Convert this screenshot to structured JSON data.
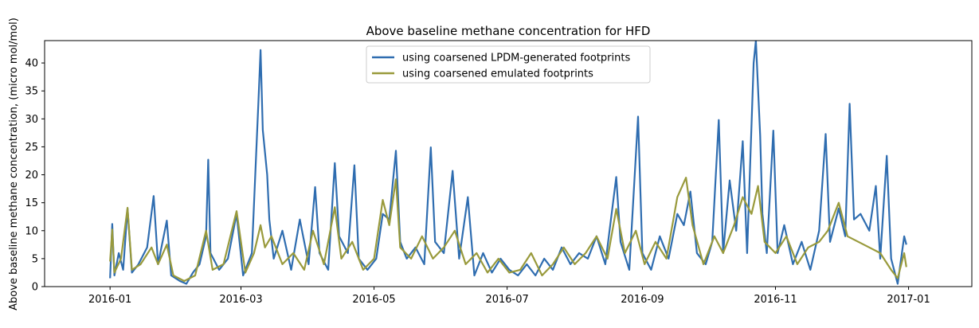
{
  "chart_data": {
    "type": "line",
    "title": "Above baseline methane concentration for HFD",
    "xlabel": "",
    "ylabel": "Above baseline methane concentration, (micro mol/mol)",
    "x_range": [
      "2015-12-02",
      "2017-01-30"
    ],
    "ylim": [
      0,
      44
    ],
    "x_ticks": [
      "2016-01-01",
      "2016-03-01",
      "2016-05-01",
      "2016-07-01",
      "2016-09-01",
      "2016-11-01",
      "2017-01-01"
    ],
    "x_tick_labels": [
      "2016-01",
      "2016-03",
      "2016-05",
      "2016-07",
      "2016-09",
      "2016-11",
      "2017-01"
    ],
    "y_ticks": [
      0,
      5,
      10,
      15,
      20,
      25,
      30,
      35,
      40
    ],
    "y_tick_labels": [
      "0",
      "5",
      "10",
      "15",
      "20",
      "25",
      "30",
      "35",
      "40"
    ],
    "grid": false,
    "legend_position": "top-center",
    "series": [
      {
        "name": "using coarsened LPDM-generated footprints",
        "color": "#2f6db0",
        "points": [
          [
            "2016-01-01",
            1.5
          ],
          [
            "2016-01-02",
            11.2
          ],
          [
            "2016-01-03",
            2.0
          ],
          [
            "2016-01-05",
            6.0
          ],
          [
            "2016-01-07",
            3.0
          ],
          [
            "2016-01-09",
            14.0
          ],
          [
            "2016-01-11",
            2.5
          ],
          [
            "2016-01-14",
            4.0
          ],
          [
            "2016-01-18",
            7.0
          ],
          [
            "2016-01-21",
            16.2
          ],
          [
            "2016-01-23",
            4.0
          ],
          [
            "2016-01-27",
            11.8
          ],
          [
            "2016-01-29",
            2.0
          ],
          [
            "2016-02-02",
            1.0
          ],
          [
            "2016-02-05",
            0.5
          ],
          [
            "2016-02-08",
            2.5
          ],
          [
            "2016-02-11",
            4.0
          ],
          [
            "2016-02-14",
            9.0
          ],
          [
            "2016-02-15",
            22.7
          ],
          [
            "2016-02-16",
            6.0
          ],
          [
            "2016-02-20",
            3.0
          ],
          [
            "2016-02-24",
            5.0
          ],
          [
            "2016-02-28",
            13.0
          ],
          [
            "2016-03-02",
            2.0
          ],
          [
            "2016-03-06",
            6.0
          ],
          [
            "2016-03-09",
            33.0
          ],
          [
            "2016-03-10",
            42.3
          ],
          [
            "2016-03-11",
            28.0
          ],
          [
            "2016-03-13",
            20.0
          ],
          [
            "2016-03-14",
            12.0
          ],
          [
            "2016-03-16",
            5.0
          ],
          [
            "2016-03-20",
            10.0
          ],
          [
            "2016-03-24",
            3.0
          ],
          [
            "2016-03-28",
            12.0
          ],
          [
            "2016-04-01",
            4.0
          ],
          [
            "2016-04-04",
            17.8
          ],
          [
            "2016-04-06",
            6.0
          ],
          [
            "2016-04-10",
            3.0
          ],
          [
            "2016-04-13",
            22.1
          ],
          [
            "2016-04-15",
            9.0
          ],
          [
            "2016-04-19",
            6.0
          ],
          [
            "2016-04-22",
            21.7
          ],
          [
            "2016-04-24",
            5.0
          ],
          [
            "2016-04-28",
            3.0
          ],
          [
            "2016-05-02",
            5.0
          ],
          [
            "2016-05-05",
            13.0
          ],
          [
            "2016-05-08",
            12.0
          ],
          [
            "2016-05-11",
            24.3
          ],
          [
            "2016-05-13",
            8.0
          ],
          [
            "2016-05-16",
            5.0
          ],
          [
            "2016-05-20",
            7.0
          ],
          [
            "2016-05-24",
            4.0
          ],
          [
            "2016-05-27",
            24.9
          ],
          [
            "2016-05-29",
            8.0
          ],
          [
            "2016-06-02",
            6.0
          ],
          [
            "2016-06-06",
            20.7
          ],
          [
            "2016-06-09",
            5.0
          ],
          [
            "2016-06-13",
            16.0
          ],
          [
            "2016-06-16",
            2.0
          ],
          [
            "2016-06-20",
            6.0
          ],
          [
            "2016-06-24",
            2.5
          ],
          [
            "2016-06-28",
            5.0
          ],
          [
            "2016-07-02",
            3.0
          ],
          [
            "2016-07-06",
            2.0
          ],
          [
            "2016-07-10",
            4.0
          ],
          [
            "2016-07-14",
            2.0
          ],
          [
            "2016-07-18",
            5.0
          ],
          [
            "2016-07-22",
            3.0
          ],
          [
            "2016-07-26",
            7.0
          ],
          [
            "2016-07-30",
            4.0
          ],
          [
            "2016-08-03",
            6.0
          ],
          [
            "2016-08-07",
            5.0
          ],
          [
            "2016-08-11",
            9.0
          ],
          [
            "2016-08-15",
            4.0
          ],
          [
            "2016-08-20",
            19.6
          ],
          [
            "2016-08-22",
            8.0
          ],
          [
            "2016-08-26",
            3.0
          ],
          [
            "2016-08-30",
            30.4
          ],
          [
            "2016-09-01",
            6.0
          ],
          [
            "2016-09-05",
            3.0
          ],
          [
            "2016-09-09",
            9.0
          ],
          [
            "2016-09-13",
            5.0
          ],
          [
            "2016-09-17",
            13.0
          ],
          [
            "2016-09-20",
            11.0
          ],
          [
            "2016-09-23",
            17.0
          ],
          [
            "2016-09-26",
            6.0
          ],
          [
            "2016-09-30",
            4.0
          ],
          [
            "2016-10-03",
            8.0
          ],
          [
            "2016-10-06",
            29.8
          ],
          [
            "2016-10-08",
            6.0
          ],
          [
            "2016-10-11",
            19.0
          ],
          [
            "2016-10-14",
            10.0
          ],
          [
            "2016-10-17",
            26.0
          ],
          [
            "2016-10-19",
            6.0
          ],
          [
            "2016-10-22",
            40.0
          ],
          [
            "2016-10-23",
            44.0
          ],
          [
            "2016-10-25",
            27.0
          ],
          [
            "2016-10-26",
            13.0
          ],
          [
            "2016-10-28",
            6.0
          ],
          [
            "2016-10-31",
            27.9
          ],
          [
            "2016-11-02",
            6.0
          ],
          [
            "2016-11-05",
            11.0
          ],
          [
            "2016-11-09",
            4.0
          ],
          [
            "2016-11-13",
            8.0
          ],
          [
            "2016-11-17",
            3.0
          ],
          [
            "2016-11-21",
            10.0
          ],
          [
            "2016-11-24",
            27.3
          ],
          [
            "2016-11-26",
            8.0
          ],
          [
            "2016-11-30",
            14.0
          ],
          [
            "2016-12-03",
            9.0
          ],
          [
            "2016-12-05",
            32.7
          ],
          [
            "2016-12-07",
            12.0
          ],
          [
            "2016-12-10",
            13.0
          ],
          [
            "2016-12-14",
            10.0
          ],
          [
            "2016-12-17",
            18.0
          ],
          [
            "2016-12-19",
            5.0
          ],
          [
            "2016-12-22",
            23.4
          ],
          [
            "2016-12-24",
            5.0
          ],
          [
            "2016-12-27",
            0.5
          ],
          [
            "2016-12-30",
            9.0
          ],
          [
            "2016-12-31",
            7.5
          ]
        ]
      },
      {
        "name": "using coarsened emulated footprints",
        "color": "#999a3c",
        "points": [
          [
            "2016-01-01",
            4.5
          ],
          [
            "2016-01-02",
            10.2
          ],
          [
            "2016-01-03",
            2.5
          ],
          [
            "2016-01-06",
            5.0
          ],
          [
            "2016-01-09",
            14.1
          ],
          [
            "2016-01-11",
            3.0
          ],
          [
            "2016-01-15",
            4.0
          ],
          [
            "2016-01-20",
            7.0
          ],
          [
            "2016-01-23",
            4.0
          ],
          [
            "2016-01-27",
            7.5
          ],
          [
            "2016-01-30",
            2.0
          ],
          [
            "2016-02-04",
            1.0
          ],
          [
            "2016-02-09",
            2.0
          ],
          [
            "2016-02-14",
            10.0
          ],
          [
            "2016-02-17",
            3.0
          ],
          [
            "2016-02-22",
            4.0
          ],
          [
            "2016-02-28",
            13.5
          ],
          [
            "2016-03-03",
            2.5
          ],
          [
            "2016-03-07",
            6.0
          ],
          [
            "2016-03-10",
            11.0
          ],
          [
            "2016-03-12",
            7.0
          ],
          [
            "2016-03-15",
            9.0
          ],
          [
            "2016-03-20",
            4.0
          ],
          [
            "2016-03-25",
            6.0
          ],
          [
            "2016-03-30",
            3.0
          ],
          [
            "2016-04-03",
            10.0
          ],
          [
            "2016-04-08",
            4.0
          ],
          [
            "2016-04-13",
            14.2
          ],
          [
            "2016-04-16",
            5.0
          ],
          [
            "2016-04-21",
            8.0
          ],
          [
            "2016-04-26",
            3.0
          ],
          [
            "2016-05-01",
            5.0
          ],
          [
            "2016-05-05",
            15.5
          ],
          [
            "2016-05-08",
            11.0
          ],
          [
            "2016-05-11",
            19.2
          ],
          [
            "2016-05-13",
            7.0
          ],
          [
            "2016-05-18",
            5.0
          ],
          [
            "2016-05-23",
            9.0
          ],
          [
            "2016-05-28",
            5.0
          ],
          [
            "2016-06-02",
            7.0
          ],
          [
            "2016-06-07",
            10.0
          ],
          [
            "2016-06-12",
            4.0
          ],
          [
            "2016-06-17",
            6.0
          ],
          [
            "2016-06-22",
            2.5
          ],
          [
            "2016-06-27",
            5.0
          ],
          [
            "2016-07-02",
            2.5
          ],
          [
            "2016-07-07",
            3.0
          ],
          [
            "2016-07-12",
            6.0
          ],
          [
            "2016-07-17",
            2.0
          ],
          [
            "2016-07-22",
            4.0
          ],
          [
            "2016-07-27",
            7.0
          ],
          [
            "2016-08-01",
            4.0
          ],
          [
            "2016-08-06",
            6.0
          ],
          [
            "2016-08-11",
            9.0
          ],
          [
            "2016-08-16",
            5.0
          ],
          [
            "2016-08-20",
            13.9
          ],
          [
            "2016-08-24",
            6.0
          ],
          [
            "2016-08-29",
            10.0
          ],
          [
            "2016-09-02",
            4.0
          ],
          [
            "2016-09-07",
            8.0
          ],
          [
            "2016-09-12",
            5.0
          ],
          [
            "2016-09-17",
            16.0
          ],
          [
            "2016-09-21",
            19.5
          ],
          [
            "2016-09-24",
            11.0
          ],
          [
            "2016-09-29",
            4.0
          ],
          [
            "2016-10-04",
            9.0
          ],
          [
            "2016-10-08",
            6.0
          ],
          [
            "2016-10-13",
            11.0
          ],
          [
            "2016-10-17",
            16.0
          ],
          [
            "2016-10-21",
            13.0
          ],
          [
            "2016-10-24",
            18.0
          ],
          [
            "2016-10-27",
            8.0
          ],
          [
            "2016-11-01",
            6.0
          ],
          [
            "2016-11-06",
            9.0
          ],
          [
            "2016-11-11",
            4.0
          ],
          [
            "2016-11-16",
            7.0
          ],
          [
            "2016-11-21",
            8.0
          ],
          [
            "2016-11-25",
            10.0
          ],
          [
            "2016-11-30",
            15.0
          ],
          [
            "2016-12-04",
            9.0
          ],
          [
            "2016-12-09",
            8.0
          ],
          [
            "2016-12-14",
            7.0
          ],
          [
            "2016-12-19",
            6.0
          ],
          [
            "2016-12-24",
            3.0
          ],
          [
            "2016-12-27",
            1.5
          ],
          [
            "2016-12-30",
            6.0
          ],
          [
            "2016-12-31",
            3.5
          ]
        ]
      }
    ]
  }
}
